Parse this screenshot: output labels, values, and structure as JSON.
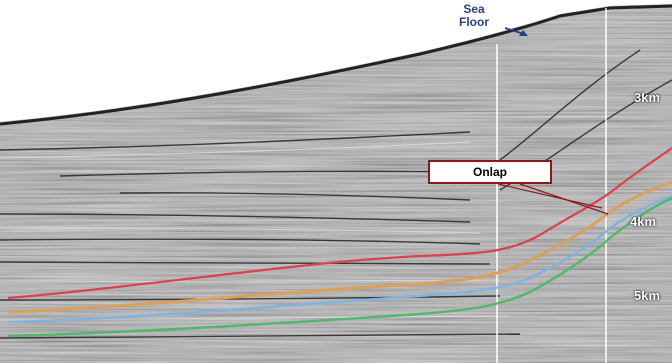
{
  "labels": {
    "sea_floor_line1": "Sea",
    "sea_floor_line2": "Floor",
    "onlap": "Onlap",
    "depth_3": "3km",
    "depth_4": "4km",
    "depth_5": "5km"
  },
  "colors": {
    "sea_floor_label": "#2b3f8a",
    "onlap_box_border": "#8a1b1b",
    "horizon_red": "#d8434f",
    "horizon_orange": "#d9a15a",
    "horizon_blue": "#7fb3e0",
    "horizon_green": "#4fb86a",
    "reflector_grey": "#8c8c8c"
  },
  "horizons": [
    "red",
    "orange",
    "blue",
    "green"
  ]
}
